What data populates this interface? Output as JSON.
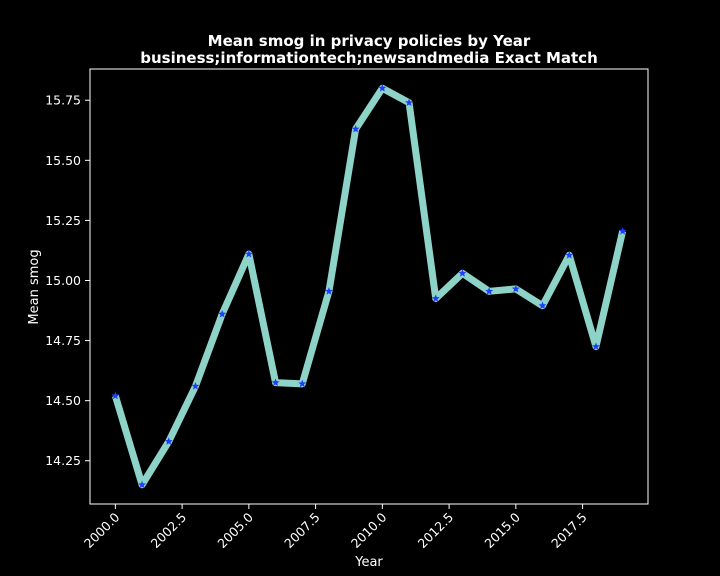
{
  "chart_data": {
    "type": "line",
    "title_line1": "Mean smog in privacy policies by Year",
    "title_line2": "business;informationtech;newsandmedia Exact Match",
    "xlabel": "Year",
    "ylabel": "Mean smog",
    "xlim": [
      1999.05,
      2019.95
    ],
    "ylim": [
      14.07,
      15.88
    ],
    "x_ticks": [
      2000.0,
      2002.5,
      2005.0,
      2007.5,
      2010.0,
      2012.5,
      2015.0,
      2017.5
    ],
    "x_tick_labels": [
      "2000.0",
      "2002.5",
      "2005.0",
      "2007.5",
      "2010.0",
      "2012.5",
      "2015.0",
      "2017.5"
    ],
    "y_ticks": [
      14.25,
      14.5,
      14.75,
      15.0,
      15.25,
      15.5,
      15.75
    ],
    "y_tick_labels": [
      "14.25",
      "14.50",
      "14.75",
      "15.00",
      "15.25",
      "15.50",
      "15.75"
    ],
    "grid": false,
    "legend": "none",
    "series": [
      {
        "x": [
          2000,
          2001,
          2002,
          2003,
          2004,
          2005,
          2006,
          2007,
          2008,
          2009,
          2010,
          2011,
          2012,
          2013,
          2014,
          2015,
          2016,
          2017,
          2018,
          2019
        ],
        "y": [
          14.52,
          14.15,
          14.33,
          14.56,
          14.86,
          15.11,
          14.575,
          14.57,
          14.955,
          15.63,
          15.8,
          15.74,
          14.925,
          15.03,
          14.955,
          14.965,
          14.895,
          15.105,
          14.725,
          15.205
        ],
        "line_color": "#8dd3c7",
        "marker_color": "#1f3cff",
        "marker": "star"
      }
    ]
  }
}
